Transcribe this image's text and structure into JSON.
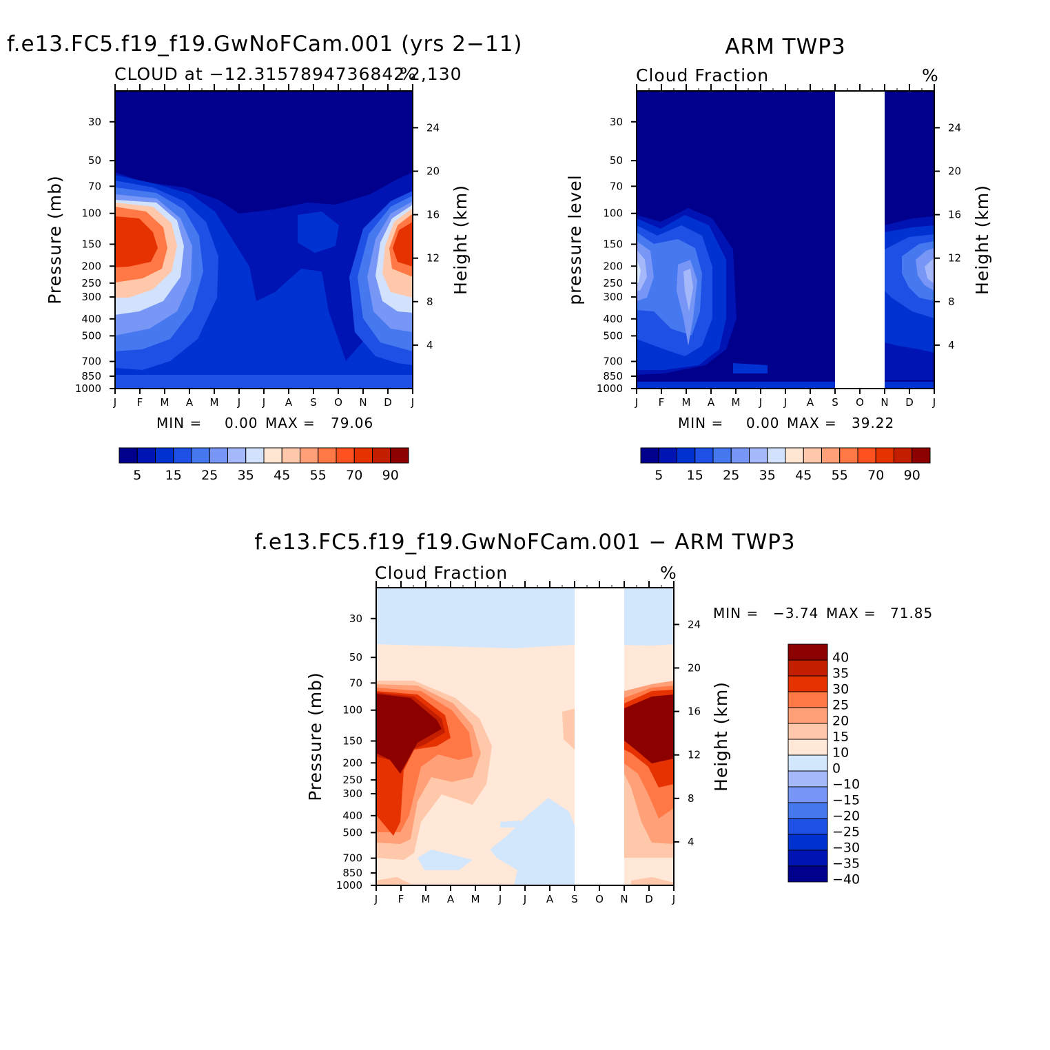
{
  "colors": {
    "model_palette": [
      "#00008c",
      "#0014b4",
      "#0032d2",
      "#1e50e6",
      "#4678f0",
      "#7896f5",
      "#a5b9fa",
      "#d2e1fc",
      "#ffe6d2",
      "#ffc8aa",
      "#ffa078",
      "#ff7846",
      "#ff5020",
      "#e63200",
      "#c31e00",
      "#8c0000"
    ],
    "diff_palette": [
      "#00008c",
      "#0014b4",
      "#0032d2",
      "#1e50e6",
      "#4678f0",
      "#7896f5",
      "#a5b9fa",
      "#d2e6fc",
      "#ffe8d8",
      "#ffc8aa",
      "#ffa078",
      "#ff7846",
      "#e63200",
      "#c31e00",
      "#8c0000"
    ],
    "missing": "#ffffff"
  },
  "panels": {
    "model": {
      "title": "f.e13.FC5.f19_f19.GwNoFCam.001 (yrs 2−11)",
      "left_string": "CLOUD at −12.3157894736842",
      "right_string": "%",
      "extra_string": "2,130",
      "ylabel": "Pressure (mb)",
      "ylabel_right": "Height (km)",
      "min_label": "MIN =",
      "min_value": "0.00",
      "max_label": "MAX =",
      "max_value": "79.06",
      "colorbar_ticks": [
        "5",
        "15",
        "25",
        "35",
        "45",
        "55",
        "70",
        "90"
      ]
    },
    "obs": {
      "title": "ARM TWP3",
      "left_string": "Cloud Fraction",
      "right_string": "%",
      "ylabel": "pressure level",
      "ylabel_right": "Height (km)",
      "min_label": "MIN =",
      "min_value": "0.00",
      "max_label": "MAX =",
      "max_value": "39.22",
      "colorbar_ticks": [
        "5",
        "15",
        "25",
        "35",
        "45",
        "55",
        "70",
        "90"
      ]
    },
    "diff": {
      "title": "f.e13.FC5.f19_f19.GwNoFCam.001 − ARM TWP3",
      "left_string": "Cloud Fraction",
      "right_string": "%",
      "ylabel": "Pressure (mb)",
      "ylabel_right": "Height (km)",
      "min_label": "MIN =",
      "min_value": "−3.74",
      "max_label": "MAX =",
      "max_value": "71.85",
      "colorbar_ticks": [
        "40",
        "35",
        "30",
        "25",
        "20",
        "15",
        "10",
        "0",
        "−10",
        "−15",
        "−20",
        "−25",
        "−30",
        "−35",
        "−40"
      ]
    }
  },
  "chart_data": [
    {
      "type": "heatmap",
      "title": "f.e13.FC5.f19_f19.GwNoFCam.001 (yrs 2−11)",
      "subtitle": "CLOUD at −12.3157894736842",
      "units": "%",
      "x_ticks": [
        "J",
        "F",
        "M",
        "A",
        "M",
        "J",
        "J",
        "A",
        "S",
        "O",
        "N",
        "D",
        "J"
      ],
      "y_ticks": [
        30,
        50,
        70,
        100,
        150,
        200,
        250,
        300,
        400,
        500,
        700,
        850,
        1000
      ],
      "y_right_ticks": [
        24,
        20,
        16,
        12,
        8,
        4
      ],
      "ylabel": "Pressure (mb)",
      "ylabel_right": "Height (km)",
      "ylim": [
        1000,
        20
      ],
      "log_y": true,
      "levels": [
        5,
        10,
        15,
        20,
        25,
        30,
        35,
        40,
        45,
        50,
        55,
        60,
        70,
        80,
        90
      ],
      "min": 0.0,
      "max": 79.06
    },
    {
      "type": "heatmap",
      "title": "ARM TWP3",
      "subtitle": "Cloud Fraction",
      "units": "%",
      "x_ticks": [
        "J",
        "F",
        "M",
        "A",
        "M",
        "J",
        "J",
        "A",
        "S",
        "O",
        "N",
        "D",
        "J"
      ],
      "y_ticks": [
        30,
        50,
        70,
        100,
        150,
        200,
        250,
        300,
        400,
        500,
        700,
        850,
        1000
      ],
      "y_right_ticks": [
        24,
        20,
        16,
        12,
        8,
        4
      ],
      "ylabel": "pressure level",
      "ylabel_right": "Height (km)",
      "ylim": [
        1000,
        20
      ],
      "log_y": true,
      "missing_months": [
        "Sep",
        "Oct"
      ],
      "levels": [
        5,
        10,
        15,
        20,
        25,
        30,
        35,
        40,
        45,
        50,
        55,
        60,
        70,
        80,
        90
      ],
      "min": 0.0,
      "max": 39.22
    },
    {
      "type": "heatmap",
      "title": "f.e13.FC5.f19_f19.GwNoFCam.001 − ARM TWP3",
      "subtitle": "Cloud Fraction",
      "units": "%",
      "x_ticks": [
        "J",
        "F",
        "M",
        "A",
        "M",
        "J",
        "J",
        "A",
        "S",
        "O",
        "N",
        "D",
        "J"
      ],
      "y_ticks": [
        30,
        50,
        70,
        100,
        150,
        200,
        250,
        300,
        400,
        500,
        700,
        850,
        1000
      ],
      "y_right_ticks": [
        24,
        20,
        16,
        12,
        8,
        4
      ],
      "ylabel": "Pressure (mb)",
      "ylabel_right": "Height (km)",
      "ylim": [
        1000,
        20
      ],
      "log_y": true,
      "missing_months": [
        "Sep",
        "Oct"
      ],
      "levels": [
        -40,
        -35,
        -30,
        -25,
        -20,
        -15,
        -10,
        0,
        10,
        15,
        20,
        25,
        30,
        35,
        40
      ],
      "min": -3.74,
      "max": 71.85
    }
  ]
}
